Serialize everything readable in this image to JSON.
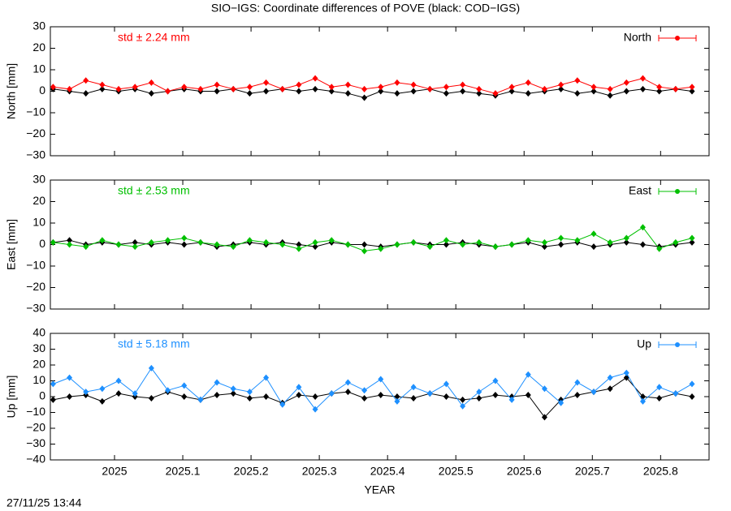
{
  "footer": "27/11/25 13:44",
  "chart_data": [
    {
      "type": "line",
      "title": "SIO−IGS: Coordinate differences of POVE (black: COD−IGS)",
      "ylabel": "North [mm]",
      "annotation": "std ± 2.24 mm",
      "xlim": [
        2024.906,
        2025.871
      ],
      "ylim": [
        -30,
        30
      ],
      "yticks": [
        {
          "value": -30,
          "label": "−30"
        },
        {
          "value": -20,
          "label": "−20"
        },
        {
          "value": -10,
          "label": "−10"
        },
        0,
        10,
        20,
        30
      ],
      "x": [
        2024.91,
        2024.934,
        2024.958,
        2024.982,
        2025.006,
        2025.03,
        2025.054,
        2025.078,
        2025.102,
        2025.126,
        2025.15,
        2025.174,
        2025.198,
        2025.222,
        2025.246,
        2025.27,
        2025.294,
        2025.318,
        2025.342,
        2025.366,
        2025.39,
        2025.414,
        2025.438,
        2025.462,
        2025.486,
        2025.51,
        2025.534,
        2025.558,
        2025.582,
        2025.606,
        2025.63,
        2025.654,
        2025.678,
        2025.702,
        2025.726,
        2025.75,
        2025.774,
        2025.798,
        2025.822,
        2025.846
      ],
      "series": [
        {
          "color": "#000000",
          "values": [
            1,
            0,
            -1,
            1,
            0,
            1,
            -1,
            0,
            1,
            0,
            0,
            1,
            -1,
            0,
            1,
            0,
            1,
            0,
            -1,
            -3,
            0,
            -1,
            0,
            1,
            -1,
            0,
            -1,
            -2,
            0,
            -1,
            0,
            1,
            -1,
            0,
            -2,
            0,
            1,
            0,
            1,
            0
          ]
        },
        {
          "name": "North",
          "color": "#ff0000",
          "values": [
            2,
            1,
            5,
            3,
            1,
            2,
            4,
            0,
            2,
            1,
            3,
            1,
            2,
            4,
            1,
            3,
            6,
            2,
            3,
            1,
            2,
            4,
            3,
            1,
            2,
            3,
            1,
            -1,
            2,
            4,
            1,
            3,
            5,
            2,
            1,
            4,
            6,
            2,
            1,
            2
          ]
        }
      ]
    },
    {
      "type": "line",
      "ylabel": "East [mm]",
      "annotation": "std ± 2.53 mm",
      "xlim": [
        2024.906,
        2025.871
      ],
      "ylim": [
        -30,
        30
      ],
      "yticks": [
        {
          "value": -30,
          "label": "−30"
        },
        {
          "value": -20,
          "label": "−20"
        },
        {
          "value": -10,
          "label": "−10"
        },
        0,
        10,
        20,
        30
      ],
      "x": [
        2024.91,
        2024.934,
        2024.958,
        2024.982,
        2025.006,
        2025.03,
        2025.054,
        2025.078,
        2025.102,
        2025.126,
        2025.15,
        2025.174,
        2025.198,
        2025.222,
        2025.246,
        2025.27,
        2025.294,
        2025.318,
        2025.342,
        2025.366,
        2025.39,
        2025.414,
        2025.438,
        2025.462,
        2025.486,
        2025.51,
        2025.534,
        2025.558,
        2025.582,
        2025.606,
        2025.63,
        2025.654,
        2025.678,
        2025.702,
        2025.726,
        2025.75,
        2025.774,
        2025.798,
        2025.822,
        2025.846
      ],
      "series": [
        {
          "color": "#000000",
          "values": [
            1,
            2,
            0,
            1,
            0,
            1,
            0,
            1,
            0,
            1,
            -1,
            0,
            1,
            0,
            1,
            0,
            -1,
            1,
            0,
            0,
            -1,
            0,
            1,
            0,
            0,
            1,
            0,
            -1,
            0,
            1,
            -1,
            0,
            1,
            -1,
            0,
            1,
            0,
            -1,
            0,
            1
          ]
        },
        {
          "name": "East",
          "color": "#00c000",
          "values": [
            1,
            0,
            -1,
            2,
            0,
            -1,
            1,
            2,
            3,
            1,
            0,
            -1,
            2,
            1,
            0,
            -2,
            1,
            2,
            0,
            -3,
            -2,
            0,
            1,
            -1,
            2,
            0,
            1,
            -1,
            0,
            2,
            1,
            3,
            2,
            5,
            1,
            3,
            8,
            -2,
            1,
            3
          ]
        }
      ]
    },
    {
      "type": "line",
      "ylabel": "Up [mm]",
      "annotation": "std ± 5.18 mm",
      "xlabel": "YEAR",
      "xlim": [
        2024.906,
        2025.871
      ],
      "ylim": [
        -40,
        40
      ],
      "yticks": [
        {
          "value": -40,
          "label": "−40"
        },
        {
          "value": -30,
          "label": "−30"
        },
        {
          "value": -20,
          "label": "−20"
        },
        {
          "value": -10,
          "label": "−10"
        },
        0,
        10,
        20,
        30,
        40
      ],
      "xticks": [
        2025,
        2025.1,
        2025.2,
        2025.3,
        2025.4,
        2025.5,
        2025.6,
        2025.7,
        2025.8
      ],
      "x": [
        2024.91,
        2024.934,
        2024.958,
        2024.982,
        2025.006,
        2025.03,
        2025.054,
        2025.078,
        2025.102,
        2025.126,
        2025.15,
        2025.174,
        2025.198,
        2025.222,
        2025.246,
        2025.27,
        2025.294,
        2025.318,
        2025.342,
        2025.366,
        2025.39,
        2025.414,
        2025.438,
        2025.462,
        2025.486,
        2025.51,
        2025.534,
        2025.558,
        2025.582,
        2025.606,
        2025.63,
        2025.654,
        2025.678,
        2025.702,
        2025.726,
        2025.75,
        2025.774,
        2025.798,
        2025.822,
        2025.846
      ],
      "series": [
        {
          "color": "#000000",
          "values": [
            -2,
            0,
            1,
            -3,
            2,
            0,
            -1,
            3,
            0,
            -2,
            1,
            2,
            -1,
            0,
            -4,
            1,
            0,
            2,
            3,
            -1,
            1,
            0,
            -1,
            2,
            0,
            -2,
            -1,
            1,
            0,
            1,
            -13,
            -2,
            1,
            3,
            5,
            12,
            0,
            -1,
            2,
            0
          ]
        },
        {
          "name": "Up",
          "color": "#1e90ff",
          "values": [
            8,
            12,
            3,
            5,
            10,
            2,
            18,
            4,
            7,
            -2,
            9,
            5,
            3,
            12,
            -5,
            6,
            -8,
            2,
            9,
            4,
            11,
            -3,
            6,
            2,
            8,
            -6,
            3,
            10,
            -2,
            14,
            5,
            -4,
            9,
            3,
            12,
            15,
            -3,
            6,
            2,
            8
          ]
        }
      ]
    }
  ]
}
